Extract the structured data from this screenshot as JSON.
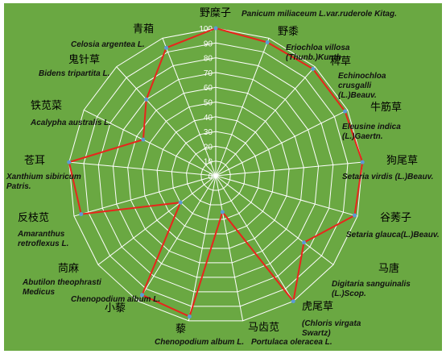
{
  "chart_data": {
    "type": "radar",
    "categories": [
      "野糜子",
      "野黍",
      "稗草",
      "牛筋草",
      "狗尾草",
      "谷莠子",
      "马唐",
      "虎尾草",
      "马齿苋",
      "藜",
      "小藜",
      "苘麻",
      "反枝苋",
      "苍耳",
      "铁苋菜",
      "鬼针草",
      "青葙"
    ],
    "latin": [
      [
        "Panicum miliaceum L.var.ruderole Kitag."
      ],
      [
        "Eriochloa villosa",
        "(Thunb.)Kunth"
      ],
      [
        "Echinochloa",
        "crusgalli",
        "(L.)Beauv."
      ],
      [
        "Eleusine indica",
        "(L.)Gaertn."
      ],
      [
        "Setaria virdis (L.)Beauv."
      ],
      [
        "Setaria glauca(L.)Beauv."
      ],
      [
        "Digitaria sanguinalis",
        "(L.)Scop."
      ],
      [
        "(Chloris virgata",
        "Swartz)"
      ],
      [
        "Portulaca oleracea L."
      ],
      [
        "Chenopodium album L."
      ],
      [
        "Chenopodium album L."
      ],
      [
        "Abutilon theophrasti",
        "Medicus"
      ],
      [
        "Amaranthus",
        "retroflexus L."
      ],
      [
        "Xanthium sibiricum",
        "Patris."
      ],
      [
        "Acalypha australis L."
      ],
      [
        "Bidens tripartita L."
      ],
      [
        "Celosia argentea L."
      ]
    ],
    "values": [
      100,
      97,
      98,
      98,
      100,
      98,
      75,
      100,
      25,
      97,
      95,
      30,
      95,
      100,
      55,
      70,
      93
    ],
    "color": "#e8251c",
    "marker_color": "#5b9bd5",
    "background": "#6aa842",
    "ylim": [
      0,
      100
    ],
    "yticks": [
      0,
      10,
      20,
      30,
      40,
      50,
      60,
      70,
      80,
      90,
      100
    ],
    "grid": true
  }
}
